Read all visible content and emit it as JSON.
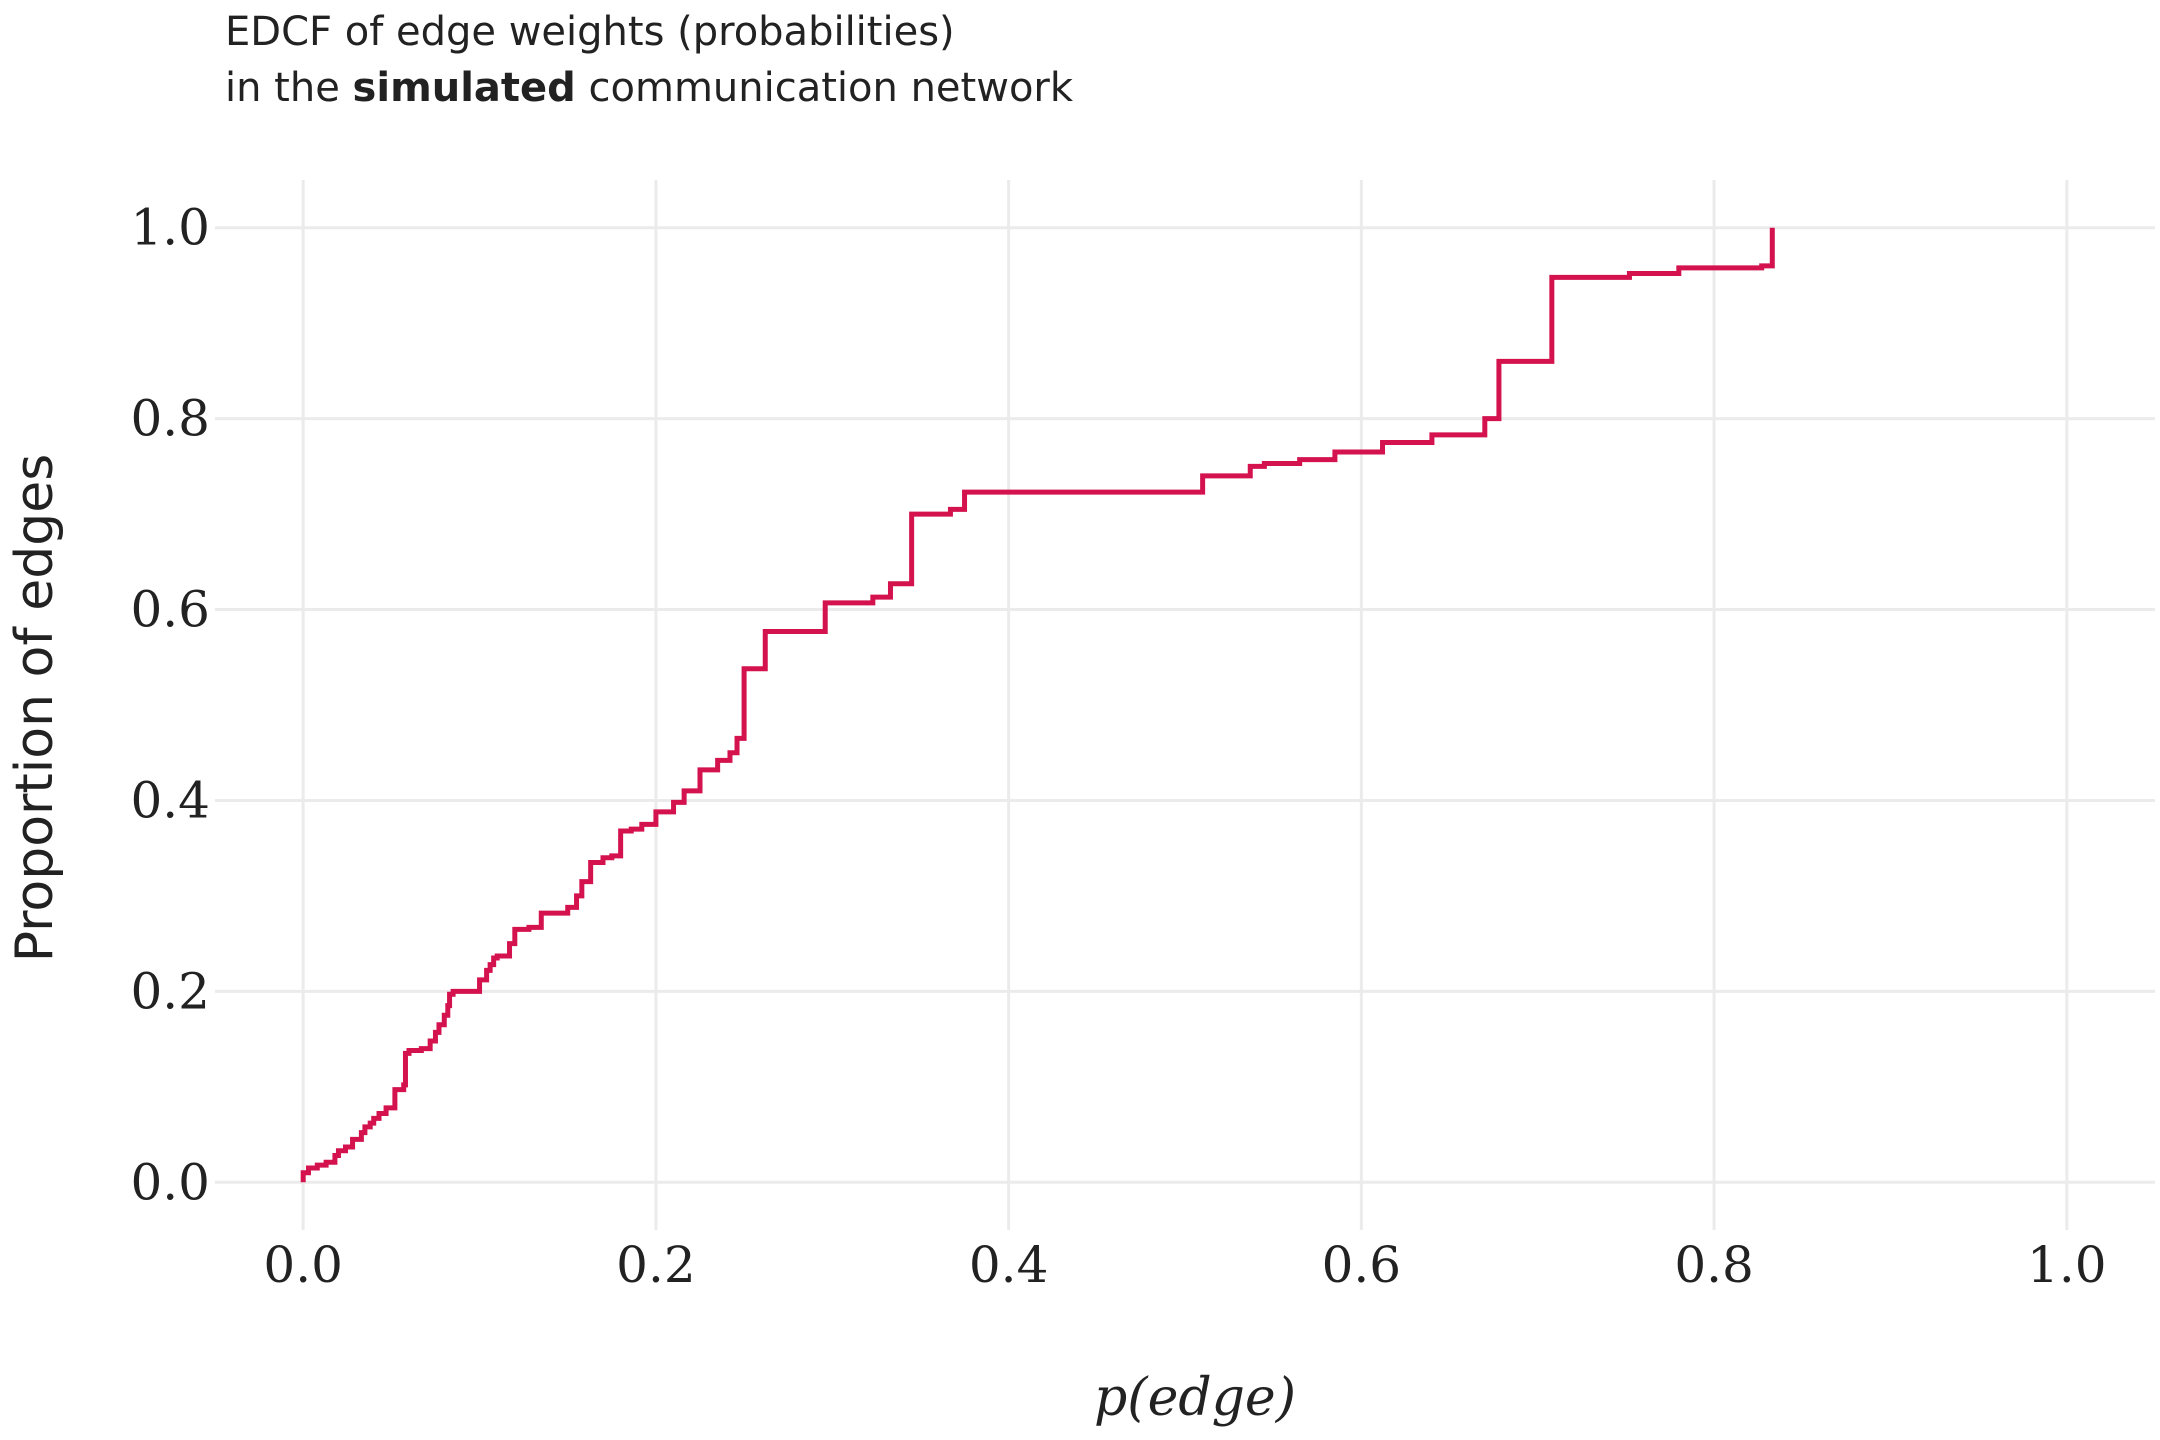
{
  "title": {
    "line1": "EDCF of edge weights (probabilities)",
    "line2_prefix": "in the",
    "line2_bold": "simulated",
    "line2_suffix": "communication network"
  },
  "chart_data": {
    "type": "line",
    "title": "EDCF of edge weights (probabilities) in the simulated communication network",
    "xlabel": "p(edge)",
    "ylabel": "Proportion of edges",
    "xlim": [
      -0.05,
      1.05
    ],
    "ylim": [
      -0.05,
      1.05
    ],
    "x_ticks": [
      "0.0",
      "0.2",
      "0.4",
      "0.6",
      "0.8",
      "1.0"
    ],
    "y_ticks": [
      "0.0",
      "0.2",
      "0.4",
      "0.6",
      "0.8",
      "1.0"
    ],
    "grid": true,
    "legend": "none",
    "series": [
      {
        "color": "#d3124e",
        "step": true,
        "x": [
          0.0,
          0.003,
          0.008,
          0.013,
          0.018,
          0.02,
          0.024,
          0.028,
          0.033,
          0.035,
          0.038,
          0.04,
          0.043,
          0.047,
          0.052,
          0.057,
          0.058,
          0.06,
          0.067,
          0.072,
          0.075,
          0.077,
          0.08,
          0.082,
          0.083,
          0.085,
          0.1,
          0.104,
          0.106,
          0.108,
          0.11,
          0.117,
          0.12,
          0.128,
          0.135,
          0.15,
          0.155,
          0.158,
          0.163,
          0.17,
          0.175,
          0.18,
          0.186,
          0.192,
          0.2,
          0.21,
          0.216,
          0.225,
          0.235,
          0.242,
          0.246,
          0.25,
          0.262,
          0.296,
          0.323,
          0.333,
          0.345,
          0.367,
          0.375,
          0.424,
          0.51,
          0.537,
          0.545,
          0.565,
          0.585,
          0.612,
          0.64,
          0.67,
          0.678,
          0.708,
          0.752,
          0.78,
          0.827,
          0.833
        ],
        "y": [
          0.01,
          0.015,
          0.018,
          0.021,
          0.028,
          0.033,
          0.037,
          0.045,
          0.052,
          0.058,
          0.062,
          0.067,
          0.072,
          0.078,
          0.097,
          0.102,
          0.135,
          0.138,
          0.14,
          0.148,
          0.157,
          0.165,
          0.175,
          0.185,
          0.197,
          0.2,
          0.212,
          0.222,
          0.228,
          0.235,
          0.237,
          0.25,
          0.265,
          0.267,
          0.282,
          0.288,
          0.3,
          0.315,
          0.335,
          0.34,
          0.342,
          0.368,
          0.37,
          0.375,
          0.388,
          0.398,
          0.41,
          0.432,
          0.442,
          0.45,
          0.465,
          0.538,
          0.577,
          0.607,
          0.613,
          0.627,
          0.7,
          0.705,
          0.723,
          0.723,
          0.74,
          0.75,
          0.753,
          0.757,
          0.765,
          0.775,
          0.783,
          0.8,
          0.86,
          0.948,
          0.952,
          0.958,
          0.96,
          0.988
        ]
      }
    ]
  }
}
